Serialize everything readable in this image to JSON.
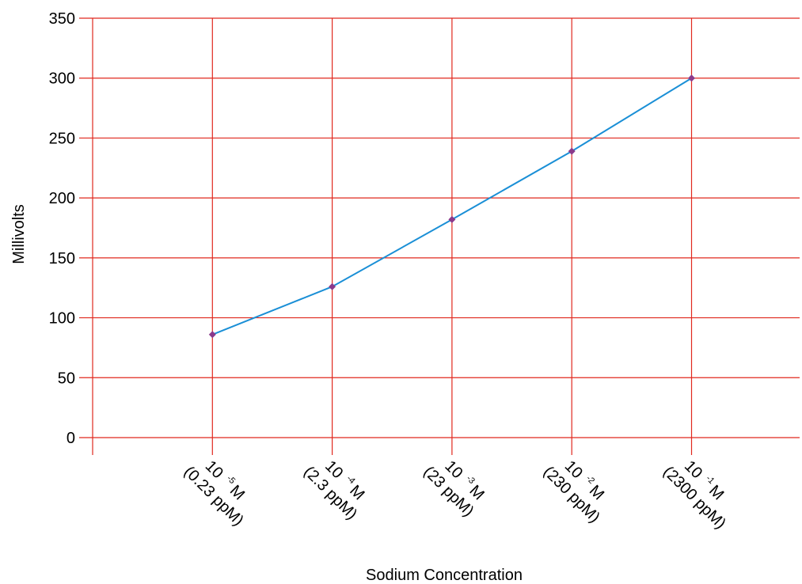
{
  "colors": {
    "grid": "#e0281e",
    "line": "#1a8fd6",
    "marker": "#8b3a8b",
    "background": "#ffffff"
  },
  "chart_data": {
    "type": "line",
    "xlabel": "Sodium Concentration",
    "ylabel": "Millivolts",
    "ylim": [
      0,
      350
    ],
    "yticks": [
      "0",
      "50",
      "100",
      "150",
      "200",
      "250",
      "300",
      "350"
    ],
    "grid": true,
    "categories": [
      {
        "base": "10",
        "exponent": "-5",
        "unit": "M",
        "ppm": "(0.23 ppM)"
      },
      {
        "base": "10",
        "exponent": "-4",
        "unit": "M",
        "ppm": "(2.3 ppM)"
      },
      {
        "base": "10",
        "exponent": "-3",
        "unit": "M",
        "ppm": "(23 ppM)"
      },
      {
        "base": "10",
        "exponent": "-2",
        "unit": "M",
        "ppm": "(230 ppM)"
      },
      {
        "base": "10",
        "exponent": "-1",
        "unit": "M",
        "ppm": "(2300 ppM)"
      }
    ],
    "series": [
      {
        "values": [
          86,
          126,
          182,
          239,
          300
        ]
      }
    ]
  }
}
